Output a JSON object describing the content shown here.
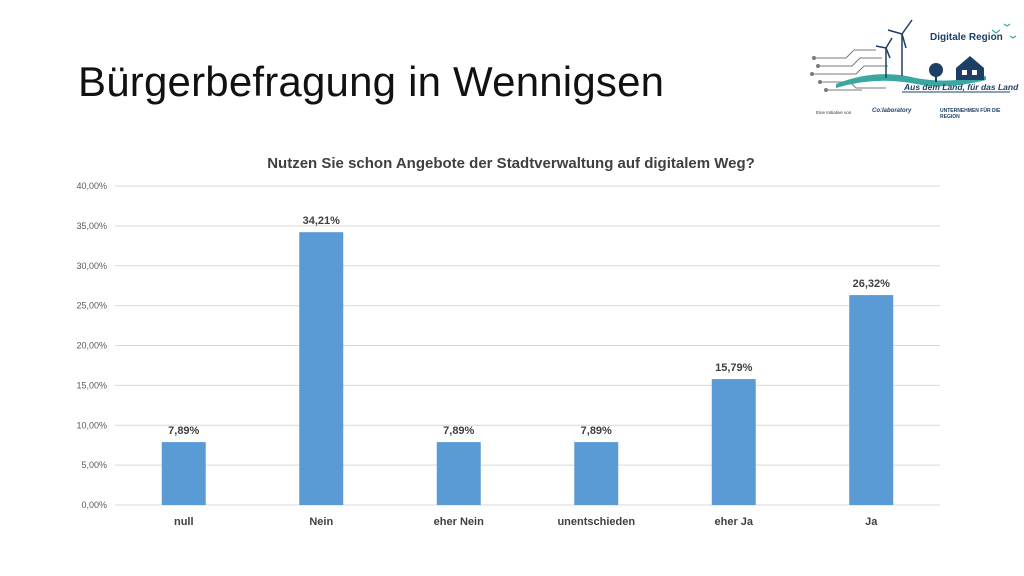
{
  "slide": {
    "title": "Bürgerbefragung in Wennigsen"
  },
  "logo": {
    "name": "Digitale Region",
    "tagline": "Aus dem Land, für das Land",
    "small_1": "Eine Initiative von",
    "small_2": "Co:laboratory",
    "small_3": "UNTERNEHMEN FÜR DIE REGION",
    "icon": "wind-turbine-circuit-logo"
  },
  "colors": {
    "bar": "#5b9bd5",
    "grid": "#d9d9d9",
    "text": "#404040"
  },
  "chart_data": {
    "type": "bar",
    "title": "Nutzen Sie schon Angebote der Stadtverwaltung auf digitalem Weg?",
    "categories": [
      "null",
      "Nein",
      "eher Nein",
      "unentschieden",
      "eher Ja",
      "Ja"
    ],
    "values": [
      7.89,
      34.21,
      7.89,
      7.89,
      15.79,
      26.32
    ],
    "data_labels": [
      "7,89%",
      "34,21%",
      "7,89%",
      "7,89%",
      "15,79%",
      "26,32%"
    ],
    "ylim": [
      0,
      40
    ],
    "yticks": [
      0,
      5,
      10,
      15,
      20,
      25,
      30,
      35,
      40
    ],
    "ytick_labels": [
      "0,00%",
      "5,00%",
      "10,00%",
      "15,00%",
      "20,00%",
      "25,00%",
      "30,00%",
      "35,00%",
      "40,00%"
    ],
    "grid": true,
    "legend": "none"
  }
}
